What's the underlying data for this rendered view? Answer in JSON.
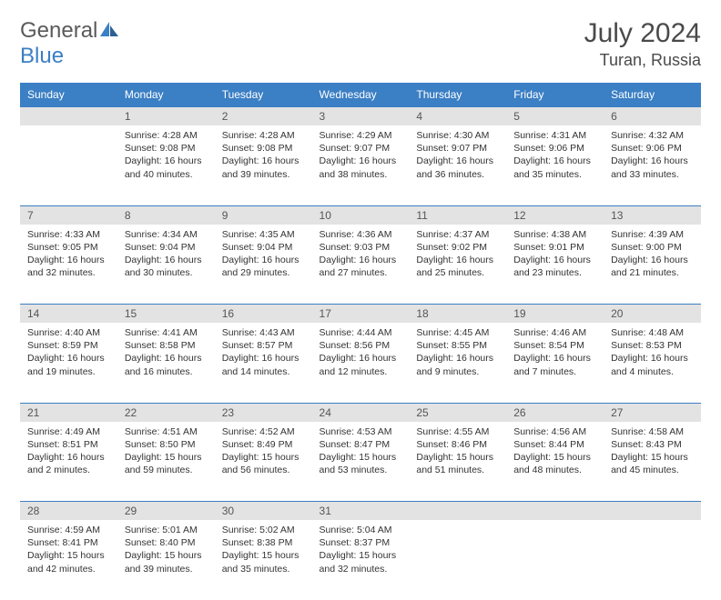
{
  "logo": {
    "word1": "General",
    "word2": "Blue"
  },
  "title": "July 2024",
  "location": "Turan, Russia",
  "colors": {
    "header_bg": "#3b7fc4",
    "header_text": "#ffffff",
    "dayrow_bg": "#e3e3e3",
    "dayrow_text": "#555555",
    "body_text": "#333333",
    "logo_gray": "#5a5a5a",
    "logo_blue": "#3b7fc4",
    "row_border": "#3b7fc4"
  },
  "weekdays": [
    "Sunday",
    "Monday",
    "Tuesday",
    "Wednesday",
    "Thursday",
    "Friday",
    "Saturday"
  ],
  "weeks": [
    {
      "nums": [
        "",
        "1",
        "2",
        "3",
        "4",
        "5",
        "6"
      ],
      "cells": [
        null,
        {
          "sr": "Sunrise: 4:28 AM",
          "ss": "Sunset: 9:08 PM",
          "dl": "Daylight: 16 hours and 40 minutes."
        },
        {
          "sr": "Sunrise: 4:28 AM",
          "ss": "Sunset: 9:08 PM",
          "dl": "Daylight: 16 hours and 39 minutes."
        },
        {
          "sr": "Sunrise: 4:29 AM",
          "ss": "Sunset: 9:07 PM",
          "dl": "Daylight: 16 hours and 38 minutes."
        },
        {
          "sr": "Sunrise: 4:30 AM",
          "ss": "Sunset: 9:07 PM",
          "dl": "Daylight: 16 hours and 36 minutes."
        },
        {
          "sr": "Sunrise: 4:31 AM",
          "ss": "Sunset: 9:06 PM",
          "dl": "Daylight: 16 hours and 35 minutes."
        },
        {
          "sr": "Sunrise: 4:32 AM",
          "ss": "Sunset: 9:06 PM",
          "dl": "Daylight: 16 hours and 33 minutes."
        }
      ]
    },
    {
      "nums": [
        "7",
        "8",
        "9",
        "10",
        "11",
        "12",
        "13"
      ],
      "cells": [
        {
          "sr": "Sunrise: 4:33 AM",
          "ss": "Sunset: 9:05 PM",
          "dl": "Daylight: 16 hours and 32 minutes."
        },
        {
          "sr": "Sunrise: 4:34 AM",
          "ss": "Sunset: 9:04 PM",
          "dl": "Daylight: 16 hours and 30 minutes."
        },
        {
          "sr": "Sunrise: 4:35 AM",
          "ss": "Sunset: 9:04 PM",
          "dl": "Daylight: 16 hours and 29 minutes."
        },
        {
          "sr": "Sunrise: 4:36 AM",
          "ss": "Sunset: 9:03 PM",
          "dl": "Daylight: 16 hours and 27 minutes."
        },
        {
          "sr": "Sunrise: 4:37 AM",
          "ss": "Sunset: 9:02 PM",
          "dl": "Daylight: 16 hours and 25 minutes."
        },
        {
          "sr": "Sunrise: 4:38 AM",
          "ss": "Sunset: 9:01 PM",
          "dl": "Daylight: 16 hours and 23 minutes."
        },
        {
          "sr": "Sunrise: 4:39 AM",
          "ss": "Sunset: 9:00 PM",
          "dl": "Daylight: 16 hours and 21 minutes."
        }
      ]
    },
    {
      "nums": [
        "14",
        "15",
        "16",
        "17",
        "18",
        "19",
        "20"
      ],
      "cells": [
        {
          "sr": "Sunrise: 4:40 AM",
          "ss": "Sunset: 8:59 PM",
          "dl": "Daylight: 16 hours and 19 minutes."
        },
        {
          "sr": "Sunrise: 4:41 AM",
          "ss": "Sunset: 8:58 PM",
          "dl": "Daylight: 16 hours and 16 minutes."
        },
        {
          "sr": "Sunrise: 4:43 AM",
          "ss": "Sunset: 8:57 PM",
          "dl": "Daylight: 16 hours and 14 minutes."
        },
        {
          "sr": "Sunrise: 4:44 AM",
          "ss": "Sunset: 8:56 PM",
          "dl": "Daylight: 16 hours and 12 minutes."
        },
        {
          "sr": "Sunrise: 4:45 AM",
          "ss": "Sunset: 8:55 PM",
          "dl": "Daylight: 16 hours and 9 minutes."
        },
        {
          "sr": "Sunrise: 4:46 AM",
          "ss": "Sunset: 8:54 PM",
          "dl": "Daylight: 16 hours and 7 minutes."
        },
        {
          "sr": "Sunrise: 4:48 AM",
          "ss": "Sunset: 8:53 PM",
          "dl": "Daylight: 16 hours and 4 minutes."
        }
      ]
    },
    {
      "nums": [
        "21",
        "22",
        "23",
        "24",
        "25",
        "26",
        "27"
      ],
      "cells": [
        {
          "sr": "Sunrise: 4:49 AM",
          "ss": "Sunset: 8:51 PM",
          "dl": "Daylight: 16 hours and 2 minutes."
        },
        {
          "sr": "Sunrise: 4:51 AM",
          "ss": "Sunset: 8:50 PM",
          "dl": "Daylight: 15 hours and 59 minutes."
        },
        {
          "sr": "Sunrise: 4:52 AM",
          "ss": "Sunset: 8:49 PM",
          "dl": "Daylight: 15 hours and 56 minutes."
        },
        {
          "sr": "Sunrise: 4:53 AM",
          "ss": "Sunset: 8:47 PM",
          "dl": "Daylight: 15 hours and 53 minutes."
        },
        {
          "sr": "Sunrise: 4:55 AM",
          "ss": "Sunset: 8:46 PM",
          "dl": "Daylight: 15 hours and 51 minutes."
        },
        {
          "sr": "Sunrise: 4:56 AM",
          "ss": "Sunset: 8:44 PM",
          "dl": "Daylight: 15 hours and 48 minutes."
        },
        {
          "sr": "Sunrise: 4:58 AM",
          "ss": "Sunset: 8:43 PM",
          "dl": "Daylight: 15 hours and 45 minutes."
        }
      ]
    },
    {
      "nums": [
        "28",
        "29",
        "30",
        "31",
        "",
        "",
        ""
      ],
      "cells": [
        {
          "sr": "Sunrise: 4:59 AM",
          "ss": "Sunset: 8:41 PM",
          "dl": "Daylight: 15 hours and 42 minutes."
        },
        {
          "sr": "Sunrise: 5:01 AM",
          "ss": "Sunset: 8:40 PM",
          "dl": "Daylight: 15 hours and 39 minutes."
        },
        {
          "sr": "Sunrise: 5:02 AM",
          "ss": "Sunset: 8:38 PM",
          "dl": "Daylight: 15 hours and 35 minutes."
        },
        {
          "sr": "Sunrise: 5:04 AM",
          "ss": "Sunset: 8:37 PM",
          "dl": "Daylight: 15 hours and 32 minutes."
        },
        null,
        null,
        null
      ]
    }
  ]
}
